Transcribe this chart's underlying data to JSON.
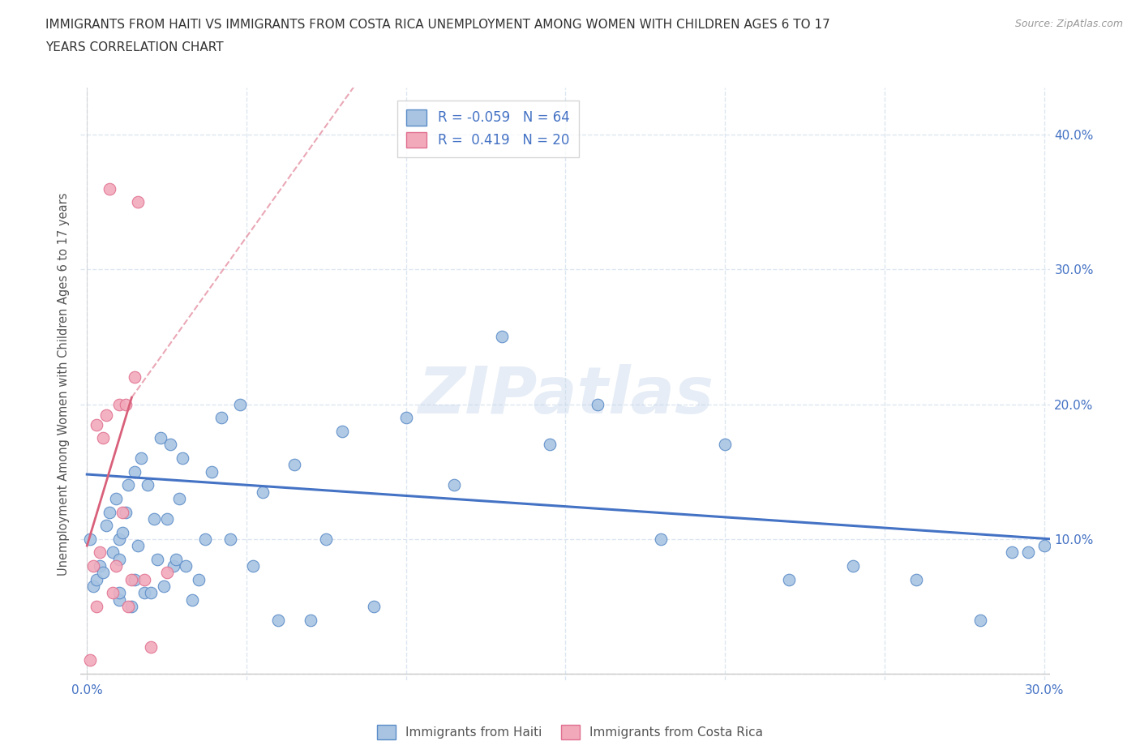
{
  "title_line1": "IMMIGRANTS FROM HAITI VS IMMIGRANTS FROM COSTA RICA UNEMPLOYMENT AMONG WOMEN WITH CHILDREN AGES 6 TO 17",
  "title_line2": "YEARS CORRELATION CHART",
  "source": "Source: ZipAtlas.com",
  "ylabel": "Unemployment Among Women with Children Ages 6 to 17 years",
  "xlim": [
    -0.002,
    0.302
  ],
  "ylim": [
    -0.005,
    0.435
  ],
  "xticks": [
    0.0,
    0.05,
    0.1,
    0.15,
    0.2,
    0.25,
    0.3
  ],
  "yticks": [
    0.0,
    0.1,
    0.2,
    0.3,
    0.4
  ],
  "ytick_labels_left": [
    "",
    "",
    "",
    "",
    ""
  ],
  "ytick_labels_right": [
    "",
    "10.0%",
    "20.0%",
    "30.0%",
    "40.0%"
  ],
  "xtick_labels": [
    "0.0%",
    "",
    "",
    "",
    "",
    "",
    "30.0%"
  ],
  "haiti_color": "#a8c4e2",
  "costa_rica_color": "#f2aabb",
  "haiti_edge_color": "#5b8cc8",
  "costa_rica_edge_color": "#e07090",
  "haiti_line_color": "#4472c4",
  "costa_rica_line_color": "#d9607a",
  "haiti_R": -0.059,
  "haiti_N": 64,
  "costa_rica_R": 0.419,
  "costa_rica_N": 20,
  "watermark": "ZIPatlas",
  "background_color": "#ffffff",
  "grid_color": "#dce6f0",
  "haiti_scatter_x": [
    0.001,
    0.002,
    0.003,
    0.004,
    0.005,
    0.006,
    0.007,
    0.008,
    0.009,
    0.01,
    0.01,
    0.01,
    0.01,
    0.011,
    0.012,
    0.013,
    0.014,
    0.015,
    0.015,
    0.016,
    0.017,
    0.018,
    0.019,
    0.02,
    0.021,
    0.022,
    0.023,
    0.024,
    0.025,
    0.026,
    0.027,
    0.028,
    0.029,
    0.03,
    0.031,
    0.033,
    0.035,
    0.037,
    0.039,
    0.042,
    0.045,
    0.048,
    0.052,
    0.055,
    0.06,
    0.065,
    0.07,
    0.075,
    0.08,
    0.09,
    0.1,
    0.115,
    0.13,
    0.145,
    0.16,
    0.18,
    0.2,
    0.22,
    0.24,
    0.26,
    0.28,
    0.29,
    0.295,
    0.3
  ],
  "haiti_scatter_y": [
    0.1,
    0.065,
    0.07,
    0.08,
    0.075,
    0.11,
    0.12,
    0.09,
    0.13,
    0.055,
    0.06,
    0.085,
    0.1,
    0.105,
    0.12,
    0.14,
    0.05,
    0.07,
    0.15,
    0.095,
    0.16,
    0.06,
    0.14,
    0.06,
    0.115,
    0.085,
    0.175,
    0.065,
    0.115,
    0.17,
    0.08,
    0.085,
    0.13,
    0.16,
    0.08,
    0.055,
    0.07,
    0.1,
    0.15,
    0.19,
    0.1,
    0.2,
    0.08,
    0.135,
    0.04,
    0.155,
    0.04,
    0.1,
    0.18,
    0.05,
    0.19,
    0.14,
    0.25,
    0.17,
    0.2,
    0.1,
    0.17,
    0.07,
    0.08,
    0.07,
    0.04,
    0.09,
    0.09,
    0.095
  ],
  "costa_rica_scatter_x": [
    0.001,
    0.002,
    0.003,
    0.003,
    0.004,
    0.005,
    0.006,
    0.007,
    0.008,
    0.009,
    0.01,
    0.011,
    0.012,
    0.013,
    0.014,
    0.015,
    0.016,
    0.018,
    0.02,
    0.025
  ],
  "costa_rica_scatter_y": [
    0.01,
    0.08,
    0.185,
    0.05,
    0.09,
    0.175,
    0.192,
    0.36,
    0.06,
    0.08,
    0.2,
    0.12,
    0.2,
    0.05,
    0.07,
    0.22,
    0.35,
    0.07,
    0.02,
    0.075
  ],
  "haiti_trend_x0": 0.0,
  "haiti_trend_y0": 0.148,
  "haiti_trend_x1": 0.302,
  "haiti_trend_y1": 0.1,
  "costa_rica_trend_solid_x0": 0.0,
  "costa_rica_trend_solid_y0": 0.095,
  "costa_rica_trend_solid_x1": 0.014,
  "costa_rica_trend_solid_y1": 0.205,
  "costa_rica_trend_dashed_x0": 0.014,
  "costa_rica_trend_dashed_y0": 0.205,
  "costa_rica_trend_dashed_x1": 0.085,
  "costa_rica_trend_dashed_y1": 0.44
}
